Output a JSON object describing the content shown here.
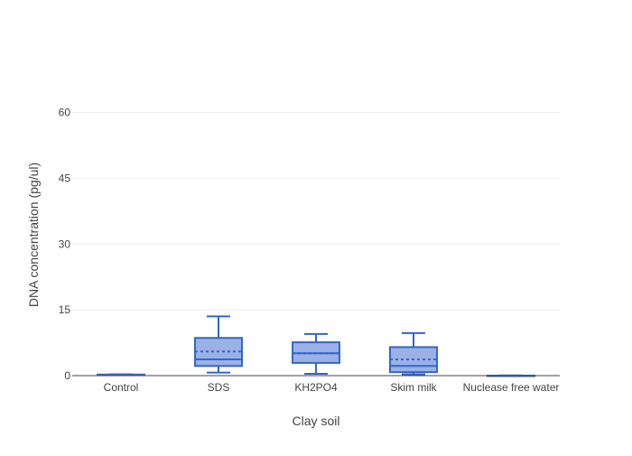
{
  "chart_data": {
    "type": "box",
    "title": "",
    "xlabel": "Clay soil",
    "ylabel": "DNA concentration (pg/ul)",
    "ylim": [
      0,
      70
    ],
    "yticks": [
      0,
      15,
      30,
      45,
      60
    ],
    "grid": true,
    "legend": "none",
    "colors": {
      "box_line": "#3366cc",
      "box_fill": "#9bb1e5",
      "grid": "#eeeeee",
      "axis": "#444444",
      "text": "#444444"
    },
    "categories": [
      "Control",
      "SDS",
      "KH2PO4",
      "Skim milk",
      "Nuclease free water"
    ],
    "boxes": [
      {
        "category": "Control",
        "min": 0.1,
        "q1": 0.15,
        "median": 0.2,
        "mean": 0.2,
        "q3": 0.25,
        "max": 0.3
      },
      {
        "category": "SDS",
        "min": 0.7,
        "q1": 2.2,
        "median": 3.7,
        "mean": 5.5,
        "q3": 8.6,
        "max": 13.5
      },
      {
        "category": "KH2PO4",
        "min": 0.4,
        "q1": 2.9,
        "median": 5.1,
        "mean": 5.1,
        "q3": 7.6,
        "max": 9.5
      },
      {
        "category": "Skim milk",
        "min": 0.3,
        "q1": 0.8,
        "median": 2.2,
        "mean": 3.7,
        "q3": 6.5,
        "max": 9.7
      },
      {
        "category": "Nuclease free water",
        "min": 0.0,
        "q1": 0.0,
        "median": 0.0,
        "mean": 0.0,
        "q3": 0.0,
        "max": 0.05
      }
    ]
  }
}
